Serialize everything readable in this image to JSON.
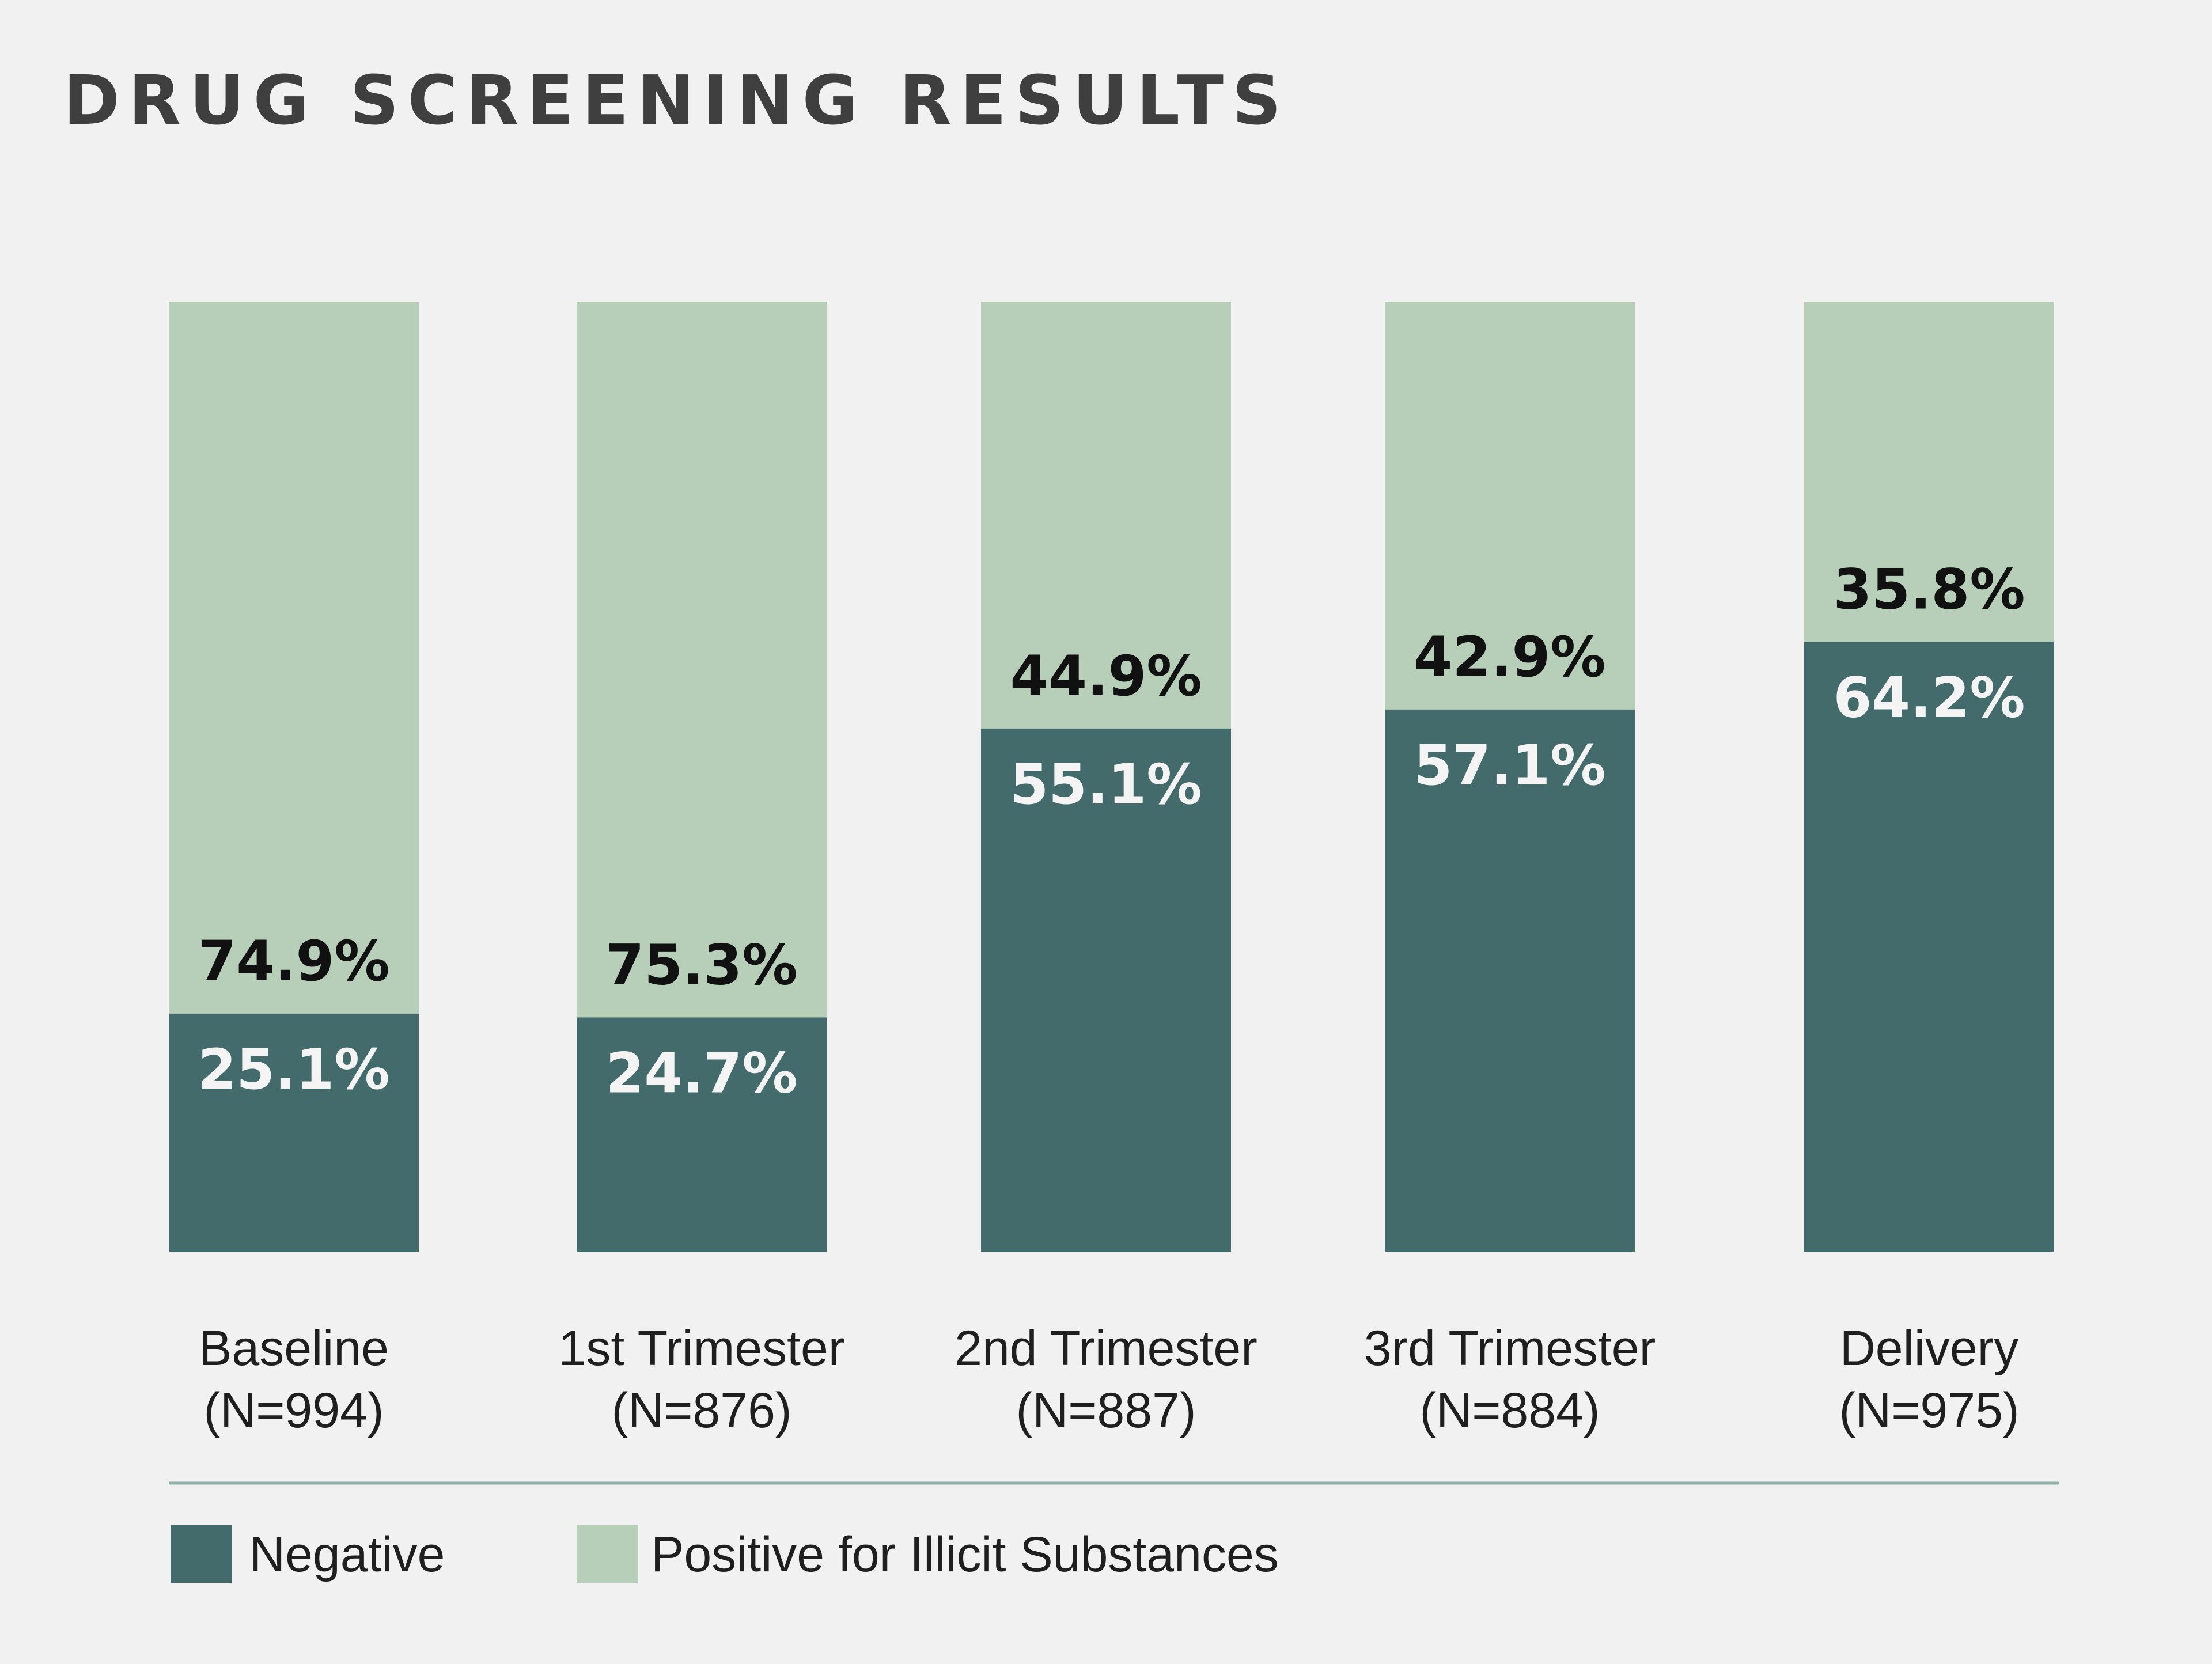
{
  "chart_data": {
    "type": "bar",
    "stacked": true,
    "title": "DRUG SCREENING RESULTS",
    "categories": [
      "Baseline",
      "1st Trimester",
      "2nd Trimester",
      "3rd Trimester",
      "Delivery"
    ],
    "sample_sizes": [
      "(N=994)",
      "(N=876)",
      "(N=887)",
      "(N=884)",
      "(N=975)"
    ],
    "series": [
      {
        "name": "Negative",
        "color": "#446b6c",
        "values": [
          25.1,
          24.7,
          55.1,
          57.1,
          64.2
        ],
        "value_labels": [
          "25.1%",
          "24.7%",
          "55.1%",
          "57.1%",
          "64.2%"
        ]
      },
      {
        "name": "Positive for Illicit Substances",
        "color": "#b7cfb9",
        "values": [
          74.9,
          75.3,
          44.9,
          42.9,
          35.8
        ],
        "value_labels": [
          "74.9%",
          "75.3%",
          "44.9%",
          "42.9%",
          "35.8%"
        ]
      }
    ],
    "ylim": [
      0,
      100
    ],
    "grid": false,
    "legend_position": "bottom-left"
  }
}
